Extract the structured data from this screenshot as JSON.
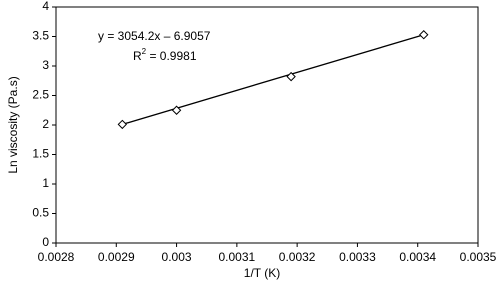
{
  "chart_data": {
    "type": "scatter",
    "x_label": "1/T (K)",
    "y_label": "Ln viscosity (Pa.s)",
    "x": [
      0.00291,
      0.003,
      0.00319,
      0.00341
    ],
    "values": [
      2.01,
      2.25,
      2.82,
      3.53
    ],
    "color": "#000000",
    "trendline": true,
    "equation": "y = 3054.2x – 6.9057",
    "r2_label": "R",
    "r2_sup": "2",
    "r2_value": " = 0.9981",
    "xlim": [
      0.0028,
      0.0035
    ],
    "xticks": [
      0.0028,
      0.0029,
      0.003,
      0.0031,
      0.0032,
      0.0033,
      0.0034,
      0.0035
    ],
    "ylim": [
      0,
      4
    ],
    "yticks": [
      0,
      0.5,
      1,
      1.5,
      2,
      2.5,
      3,
      3.5,
      4
    ]
  }
}
